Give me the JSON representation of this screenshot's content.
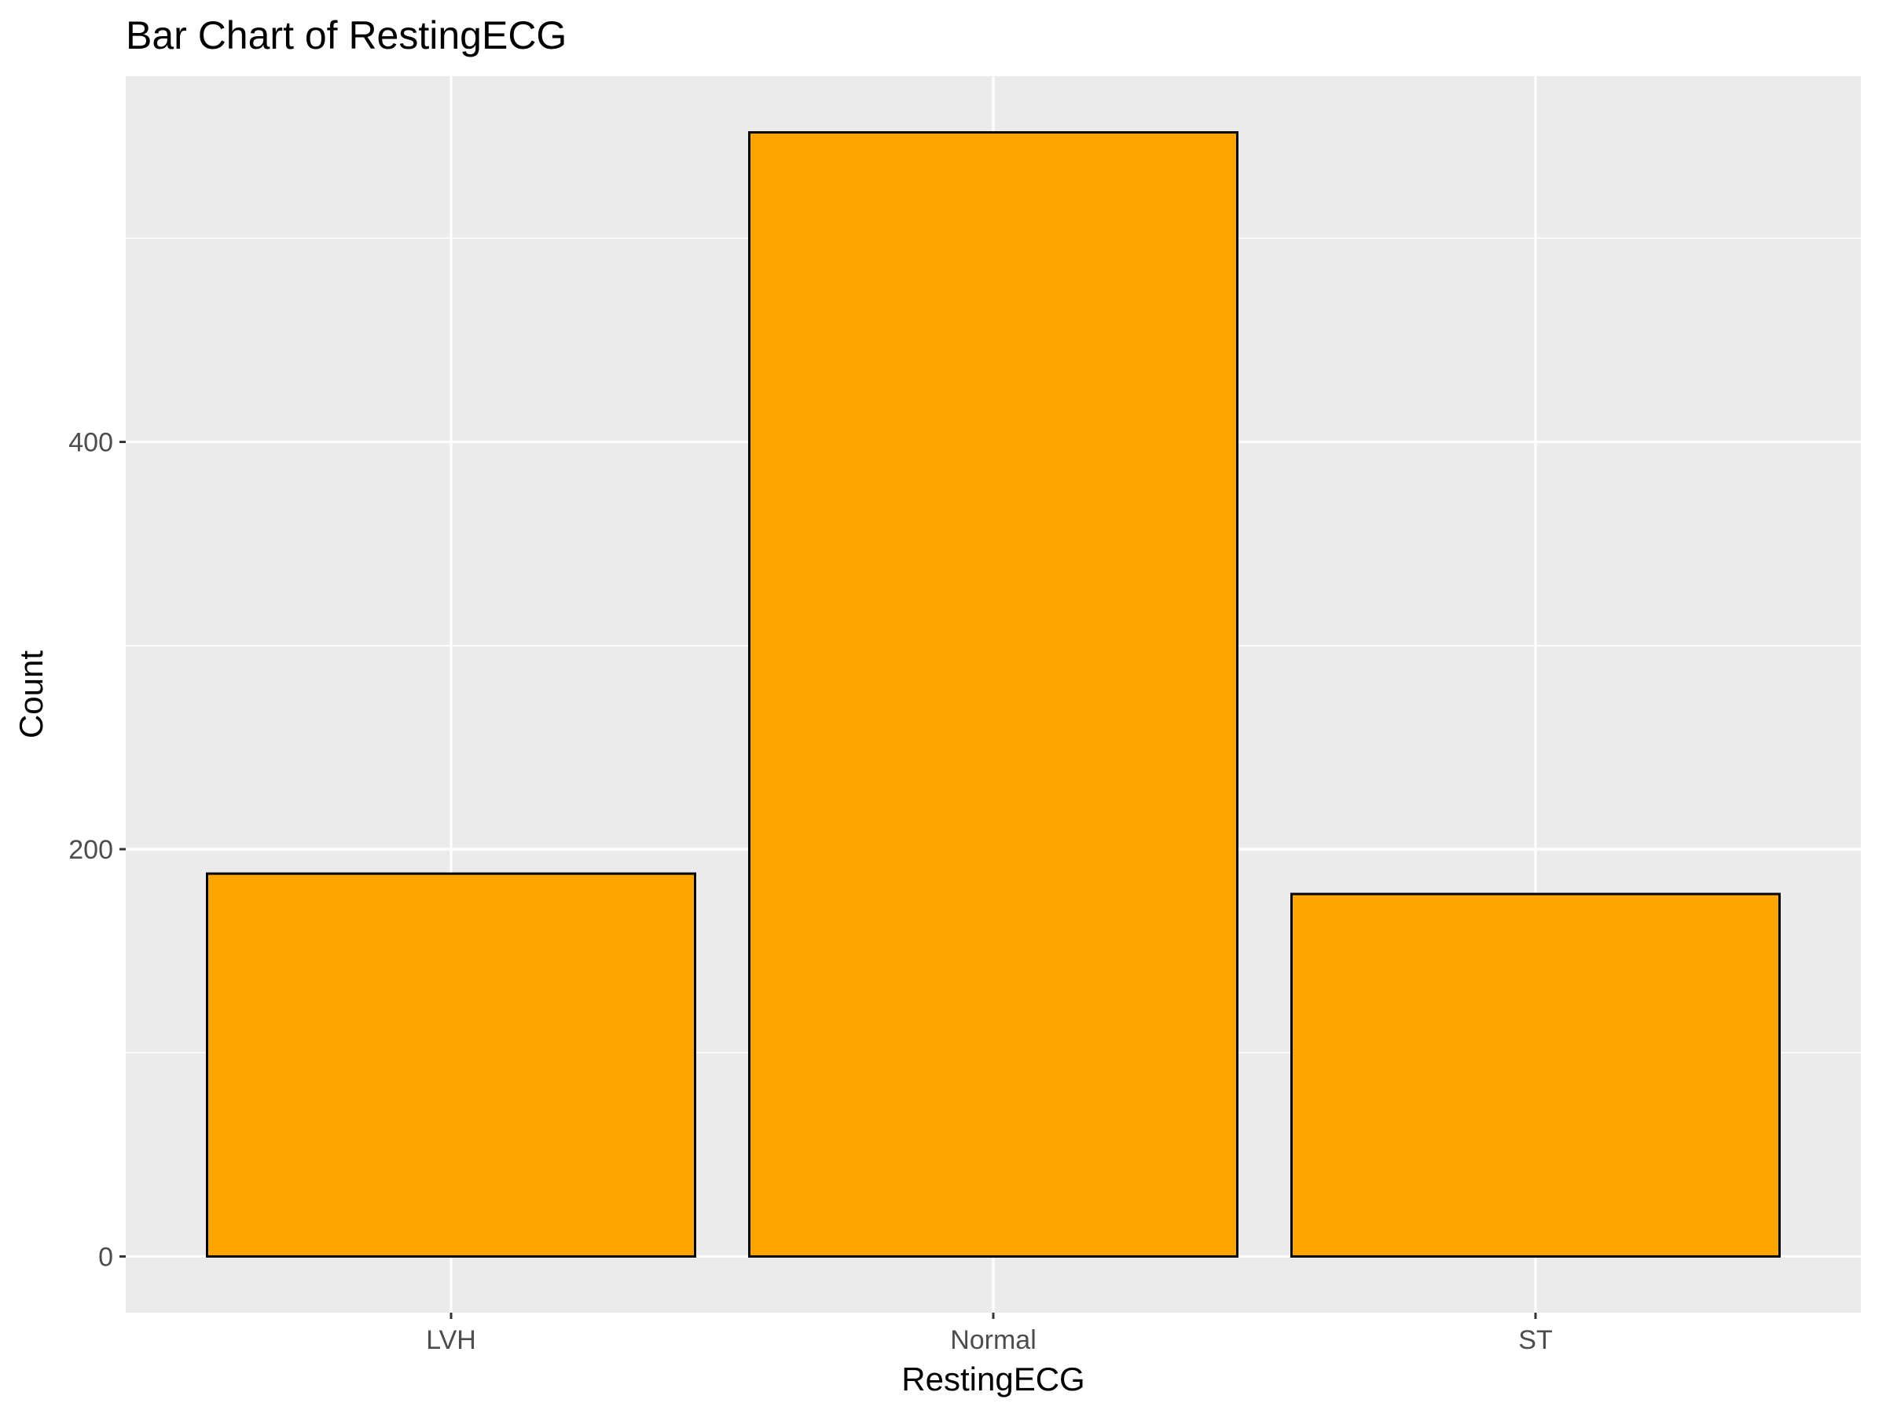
{
  "chart_data": {
    "type": "bar",
    "title": "Bar Chart of RestingECG",
    "xlabel": "RestingECG",
    "ylabel": "Count",
    "categories": [
      "LVH",
      "Normal",
      "ST"
    ],
    "values": [
      188,
      552,
      178
    ],
    "ylim": [
      -27.6,
      579.6
    ],
    "yticks": [
      0,
      200,
      400
    ],
    "grid": true,
    "legend": "none",
    "colors": {
      "bar_fill": "#FFA500",
      "bar_outline": "#000000",
      "panel_background": "#EBEBEB",
      "grid_line": "#FFFFFF",
      "tick_text": "#4D4D4D"
    }
  }
}
